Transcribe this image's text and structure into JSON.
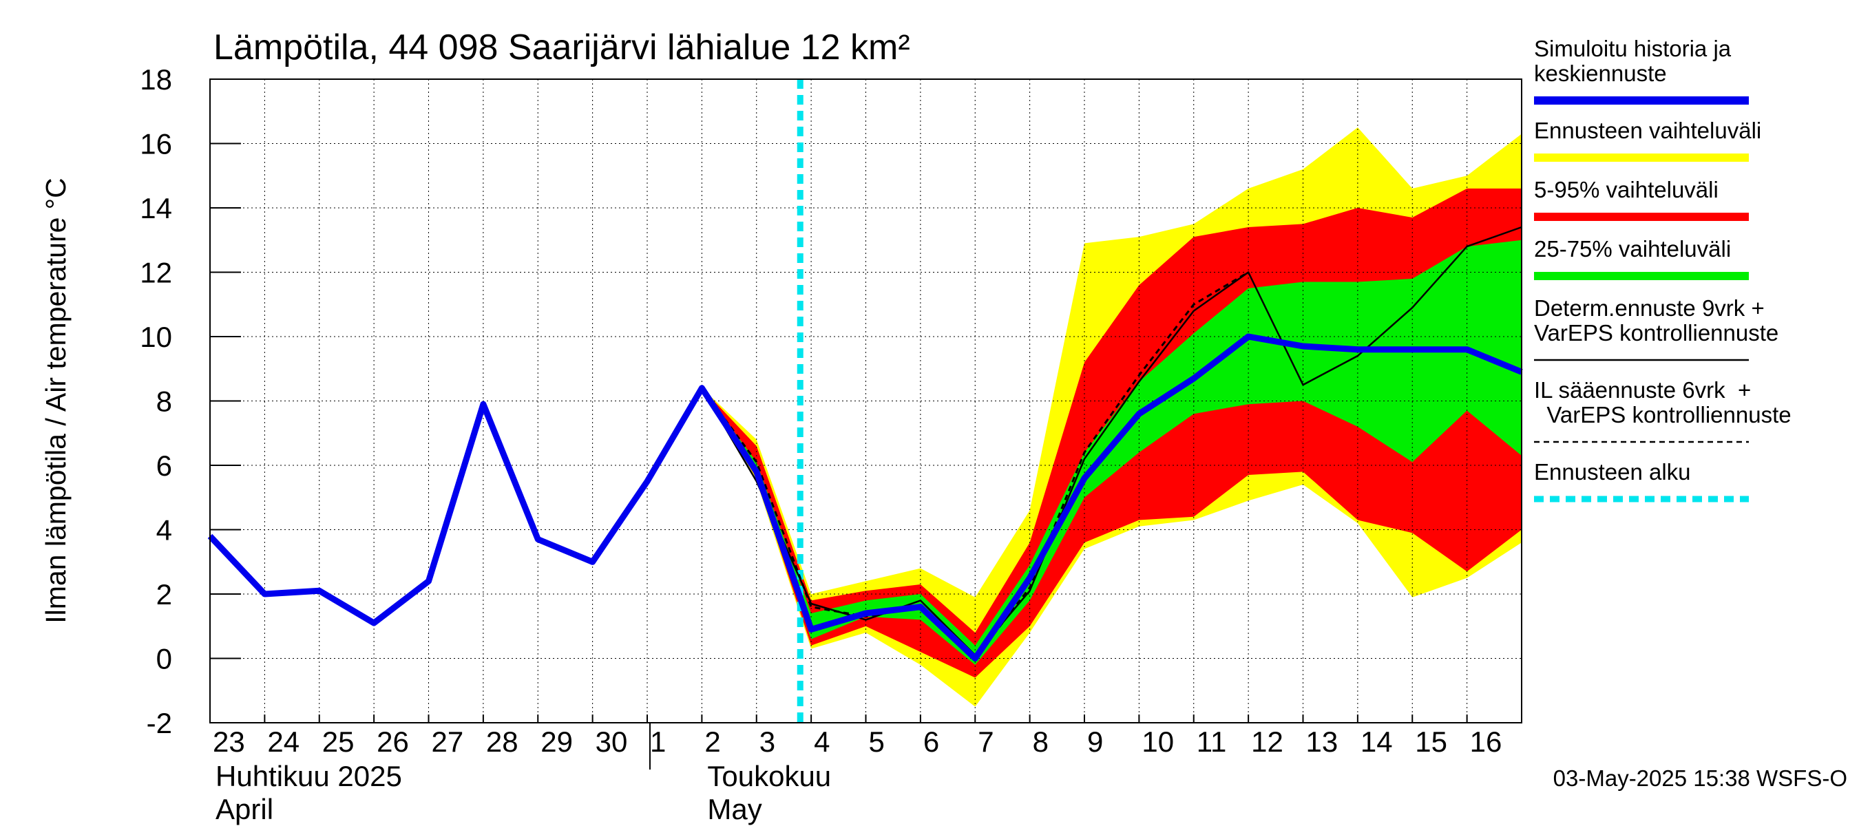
{
  "chart_data": {
    "type": "area",
    "title": "Lämpötila, 44 098 Saarijärvi lähialue 12 km²",
    "ylabel": "Ilman lämpötila / Air temperature   °C",
    "xlabel": "",
    "ylim": [
      -2,
      18
    ],
    "yticks": [
      "-2",
      "0",
      "2",
      "4",
      "6",
      "8",
      "10",
      "12",
      "14",
      "16",
      "18"
    ],
    "grid": true,
    "legend_position": "right",
    "x_tick_labels": [
      "23",
      "24",
      "25",
      "26",
      "27",
      "28",
      "29",
      "30",
      "1",
      "2",
      "3",
      "4",
      "5",
      "6",
      "7",
      "8",
      "9",
      "10",
      "11",
      "12",
      "13",
      "14",
      "15",
      "16"
    ],
    "month_labels": [
      {
        "line1": "Huhtikuu  2025",
        "line2": "April"
      },
      {
        "line1": "Toukokuu",
        "line2": "May"
      }
    ],
    "forecast_start_day": 10.8,
    "x_day_offsets": [
      0,
      1,
      2,
      3,
      4,
      5,
      6,
      7,
      8,
      9,
      10,
      11,
      12,
      13,
      14,
      15,
      16,
      17,
      18,
      19,
      20,
      21,
      22,
      23,
      24
    ],
    "series": [
      {
        "name": "Simuloitu historia ja keskiennuste",
        "style": "line",
        "color": "#0000ee",
        "x": [
          0,
          1,
          2,
          3,
          4,
          5,
          6,
          7,
          8,
          9,
          10,
          11,
          12,
          13,
          14,
          15,
          16,
          17,
          18,
          19,
          20,
          21,
          22,
          23,
          24
        ],
        "values": [
          3.8,
          2.0,
          2.1,
          1.1,
          2.4,
          7.9,
          3.7,
          3.0,
          5.5,
          8.4,
          5.8,
          0.9,
          1.4,
          1.6,
          0.0,
          2.5,
          5.6,
          7.6,
          8.7,
          10.0,
          9.7,
          9.6,
          9.6,
          9.6,
          8.9
        ]
      },
      {
        "name": "Determ.ennuste 9vrk + VarEPS kontrolliennuste",
        "style": "line",
        "color": "#000000",
        "x": [
          9,
          10,
          11,
          12,
          13,
          14,
          15,
          16,
          17,
          18,
          19,
          20,
          21,
          22,
          23,
          24
        ],
        "values": [
          8.4,
          5.5,
          1.7,
          1.2,
          1.8,
          0.1,
          2.1,
          6.2,
          8.6,
          10.8,
          12.0,
          8.5,
          9.4,
          10.9,
          12.8,
          13.4
        ]
      },
      {
        "name": "IL sääennuste 6vrk  +  VarEPS kontrolliennuste",
        "style": "dashed",
        "color": "#000000",
        "x": [
          9,
          10,
          11,
          12,
          13,
          14,
          15,
          16,
          17,
          18,
          19
        ],
        "values": [
          8.4,
          6.1,
          1.6,
          1.3,
          1.6,
          0.0,
          2.2,
          6.4,
          8.8,
          11.0,
          12.0
        ]
      }
    ],
    "bands": [
      {
        "name": "Ennusteen vaihteluväli",
        "color": "#ffff00",
        "x": [
          9,
          10,
          11,
          12,
          13,
          14,
          15,
          16,
          17,
          18,
          19,
          20,
          21,
          22,
          23,
          24
        ],
        "upper": [
          8.4,
          6.8,
          2.0,
          2.4,
          2.8,
          1.9,
          4.6,
          12.9,
          13.1,
          13.5,
          14.6,
          15.2,
          16.5,
          14.6,
          15.0,
          16.3
        ],
        "lower": [
          8.4,
          5.5,
          0.3,
          0.8,
          -0.2,
          -1.5,
          0.8,
          3.4,
          4.1,
          4.3,
          4.9,
          5.4,
          4.2,
          1.9,
          2.5,
          3.6
        ]
      },
      {
        "name": "5-95% vaihteluväli",
        "color": "#ff0000",
        "x": [
          9,
          10,
          11,
          12,
          13,
          14,
          15,
          16,
          17,
          18,
          19,
          20,
          21,
          22,
          23,
          24
        ],
        "upper": [
          8.4,
          6.6,
          1.8,
          2.1,
          2.3,
          0.8,
          3.6,
          9.2,
          11.6,
          13.1,
          13.4,
          13.5,
          14.0,
          13.7,
          14.6,
          14.6
        ],
        "lower": [
          8.4,
          5.6,
          0.4,
          1.0,
          0.2,
          -0.6,
          1.0,
          3.6,
          4.3,
          4.4,
          5.7,
          5.8,
          4.3,
          3.9,
          2.7,
          4.0
        ]
      },
      {
        "name": "25-75% vaihteluväli",
        "color": "#00ee00",
        "x": [
          9,
          10,
          11,
          12,
          13,
          14,
          15,
          16,
          17,
          18,
          19,
          20,
          21,
          22,
          23,
          24
        ],
        "upper": [
          8.4,
          6.1,
          1.4,
          1.8,
          2.0,
          0.4,
          2.9,
          6.4,
          8.6,
          10.1,
          11.5,
          11.7,
          11.7,
          11.8,
          12.8,
          13.0
        ],
        "lower": [
          8.4,
          5.7,
          0.6,
          1.3,
          1.2,
          -0.2,
          1.8,
          5.0,
          6.4,
          7.6,
          7.9,
          8.0,
          7.2,
          6.1,
          7.7,
          6.3
        ]
      }
    ],
    "legend": [
      {
        "label_lines": [
          "Simuloitu historia ja",
          "keskiennuste"
        ],
        "color": "#0000ee",
        "swatch": "thick"
      },
      {
        "label_lines": [
          "Ennusteen vaihteluväli"
        ],
        "color": "#ffff00",
        "swatch": "thick"
      },
      {
        "label_lines": [
          "5-95% vaihteluväli"
        ],
        "color": "#ff0000",
        "swatch": "thick"
      },
      {
        "label_lines": [
          "25-75% vaihteluväli"
        ],
        "color": "#00ee00",
        "swatch": "thick"
      },
      {
        "label_lines": [
          "Determ.ennuste 9vrk +",
          "VarEPS kontrolliennuste"
        ],
        "color": "#000000",
        "swatch": "thin"
      },
      {
        "label_lines": [
          "IL sääennuste 6vrk  +",
          "  VarEPS kontrolliennuste"
        ],
        "color": "#000000",
        "swatch": "dashed"
      },
      {
        "label_lines": [
          "Ennusteen alku"
        ],
        "color": "#00e5ee",
        "swatch": "cyan-dashed"
      }
    ],
    "timestamp": "03-May-2025 15:38 WSFS-O"
  }
}
